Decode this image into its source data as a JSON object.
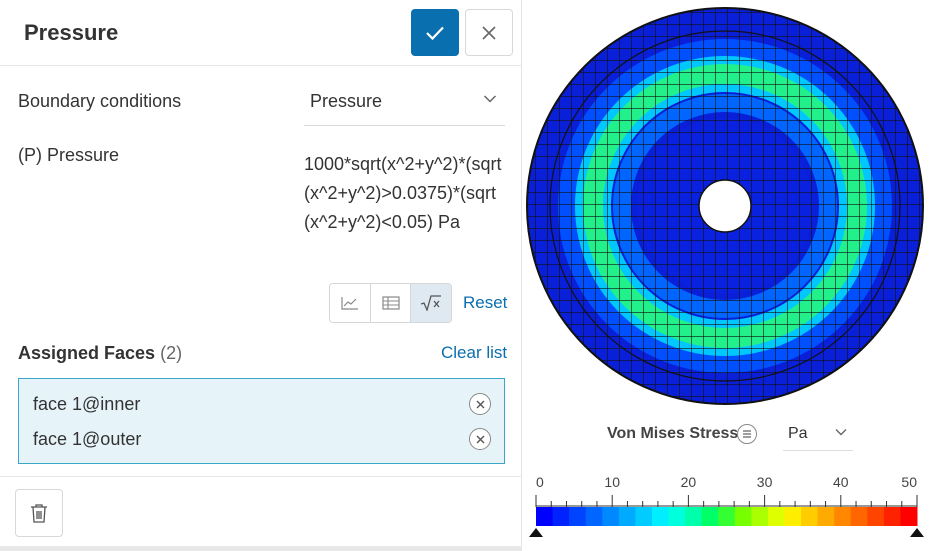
{
  "panel": {
    "title": "Pressure",
    "confirm_icon": "check-icon",
    "close_icon": "close-icon",
    "boundary_label": "Boundary conditions",
    "boundary_value": "Pressure",
    "pressure_label": "(P) Pressure",
    "pressure_expression": "1000*sqrt(x^2+y^2)*(sqrt(x^2+y^2)>0.0375)*(sqrt(x^2+y^2)<0.05) Pa",
    "input_modes": [
      "chart-icon",
      "table-icon",
      "formula-icon"
    ],
    "active_mode": "formula",
    "reset_label": "Reset",
    "assigned_title": "Assigned Faces",
    "assigned_count": "(2)",
    "clear_label": "Clear list",
    "faces": [
      "face 1@inner",
      "face 1@outer"
    ],
    "delete_icon": "trash-icon"
  },
  "viewport": {
    "legend_title": "Von Mises Stress",
    "unit": "Pa",
    "scale_min": 0,
    "scale_max": 50,
    "ticks": [
      "0",
      "10",
      "20",
      "30",
      "40",
      "50"
    ],
    "colors": [
      "#0000ff",
      "#0022ff",
      "#0044ff",
      "#0066ff",
      "#0088ff",
      "#00aaff",
      "#00ccff",
      "#00eeff",
      "#00ffdd",
      "#00ffaa",
      "#00ff66",
      "#33ff33",
      "#77ff00",
      "#aaff00",
      "#ddff00",
      "#ffee00",
      "#ffcc00",
      "#ffaa00",
      "#ff8800",
      "#ff6600",
      "#ff4400",
      "#ff2200",
      "#ff0000"
    ]
  }
}
